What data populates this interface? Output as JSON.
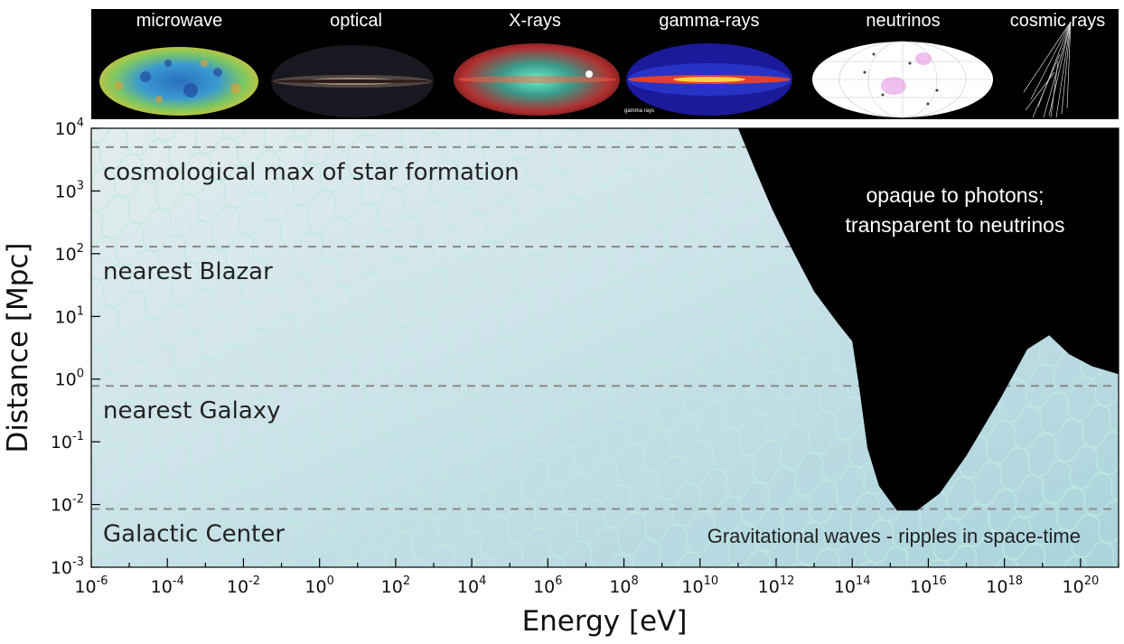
{
  "banner": {
    "panels": [
      {
        "label": "microwave"
      },
      {
        "label": "optical"
      },
      {
        "label": "X-rays"
      },
      {
        "label": "gamma-rays",
        "caption": "gamma rays"
      },
      {
        "label": "neutrinos"
      },
      {
        "label": "cosmic rays"
      }
    ]
  },
  "chart_data": {
    "type": "area",
    "xlabel": "Energy [eV]",
    "ylabel": "Distance [Mpc]",
    "xscale": "log",
    "yscale": "log",
    "xlim": [
      1e-06,
      1e+21
    ],
    "ylim": [
      0.001,
      10000.0
    ],
    "x_ticks": [
      "10-6",
      "10-4",
      "10-2",
      "100",
      "102",
      "104",
      "106",
      "108",
      "1010",
      "1012",
      "1014",
      "1016",
      "1018",
      "1020"
    ],
    "y_ticks": [
      "10-3",
      "10-2",
      "10-1",
      "100",
      "101",
      "102",
      "103",
      "104"
    ],
    "reference_lines": [
      {
        "label": "cosmological max of star formation",
        "distance_mpc": 5000
      },
      {
        "label": "nearest Blazar",
        "distance_mpc": 130
      },
      {
        "label": "nearest Galaxy",
        "distance_mpc": 0.78
      },
      {
        "label": "Galactic Center",
        "distance_mpc": 0.0085
      }
    ],
    "opaque_region": {
      "annotation_line1": "opaque to photons;",
      "annotation_line2": "transparent to neutrinos",
      "color": "#000000",
      "boundary": [
        {
          "energy_ev": 100000000000.0,
          "distance_mpc": 10000
        },
        {
          "energy_ev": 300000000000.0,
          "distance_mpc": 2000
        },
        {
          "energy_ev": 800000000000.0,
          "distance_mpc": 500
        },
        {
          "energy_ev": 3000000000000.0,
          "distance_mpc": 100
        },
        {
          "energy_ev": 10000000000000.0,
          "distance_mpc": 25
        },
        {
          "energy_ev": 40000000000000.0,
          "distance_mpc": 8
        },
        {
          "energy_ev": 100000000000000.0,
          "distance_mpc": 4
        },
        {
          "energy_ev": 150000000000000.0,
          "distance_mpc": 0.8
        },
        {
          "energy_ev": 250000000000000.0,
          "distance_mpc": 0.08
        },
        {
          "energy_ev": 500000000000000.0,
          "distance_mpc": 0.02
        },
        {
          "energy_ev": 1500000000000000.0,
          "distance_mpc": 0.008
        },
        {
          "energy_ev": 5000000000000000.0,
          "distance_mpc": 0.008
        },
        {
          "energy_ev": 2e+16,
          "distance_mpc": 0.015
        },
        {
          "energy_ev": 1e+17,
          "distance_mpc": 0.06
        },
        {
          "energy_ev": 8e+17,
          "distance_mpc": 0.5
        },
        {
          "energy_ev": 4e+18,
          "distance_mpc": 3
        },
        {
          "energy_ev": 1.5e+19,
          "distance_mpc": 5
        },
        {
          "energy_ev": 5e+19,
          "distance_mpc": 2.5
        },
        {
          "energy_ev": 2e+20,
          "distance_mpc": 1.6
        },
        {
          "energy_ev": 1e+21,
          "distance_mpc": 1.2
        }
      ]
    },
    "bottom_annotation": "Gravitational waves - ripples in space-time"
  },
  "colors": {
    "plot_background": "#cfe3ea",
    "grid_ripple": "#bfe8e0",
    "opaque": "#000000",
    "reference_line": "#8a8a8a"
  }
}
